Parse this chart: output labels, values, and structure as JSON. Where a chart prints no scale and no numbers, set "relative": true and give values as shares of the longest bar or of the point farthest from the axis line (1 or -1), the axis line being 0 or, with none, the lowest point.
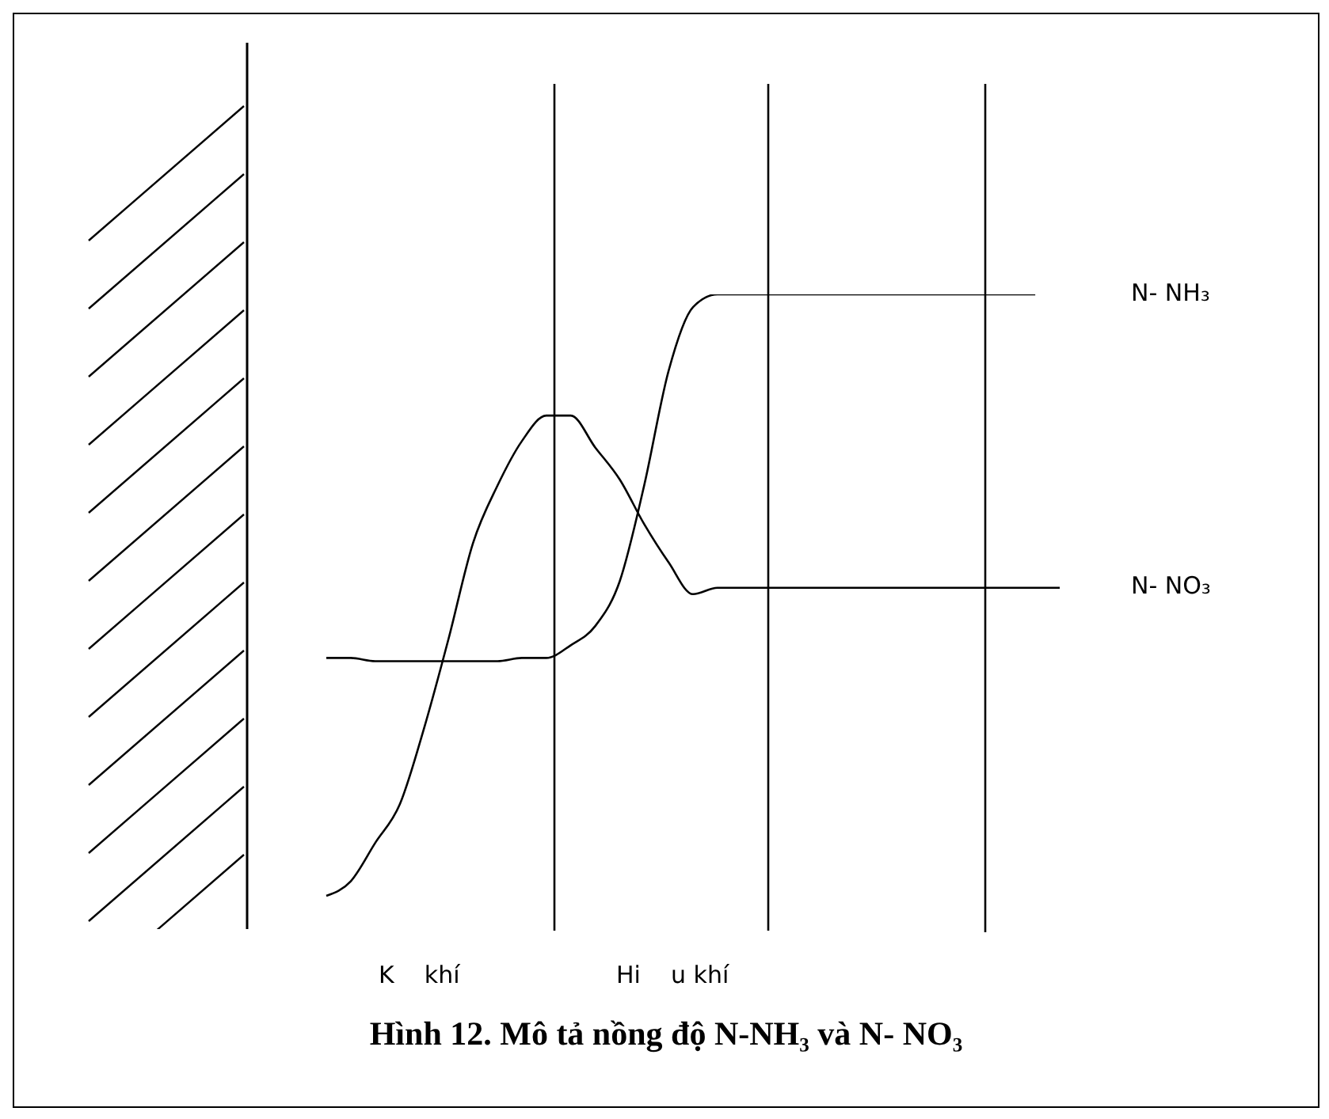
{
  "chart_data": {
    "type": "line",
    "relative": true,
    "title": "Hình 12.  Mô tả nồng độ N-NH₃ và N- NO₃",
    "categories": [
      null,
      null,
      null,
      null,
      null,
      null,
      null,
      null,
      null,
      null,
      null,
      null,
      null,
      null,
      null,
      null,
      null,
      null,
      null,
      null,
      null,
      null,
      null,
      null,
      null,
      null,
      null,
      null,
      null,
      null,
      null
    ],
    "series": [
      {
        "name": "N- NH₃",
        "color": "#000000",
        "values": [
          0.43,
          0.43,
          0.425,
          0.425,
          0.425,
          0.425,
          0.425,
          0.425,
          0.43,
          0.43,
          0.45,
          0.48,
          0.55,
          0.7,
          0.88,
          0.98,
          1,
          1,
          1,
          1,
          1,
          1,
          1,
          1,
          1,
          1,
          1,
          1,
          1,
          1,
          null
        ]
      },
      {
        "name": "N- NO₃",
        "color": "#000000",
        "values": [
          0.057,
          0.08,
          0.14,
          0.2,
          0.32,
          0.46,
          0.61,
          0.7,
          0.77,
          0.81,
          0.81,
          0.76,
          0.71,
          0.64,
          0.58,
          0.53,
          0.54,
          0.54,
          0.54,
          0.54,
          0.54,
          0.54,
          0.54,
          0.54,
          0.54,
          0.54,
          0.54,
          0.54,
          0.54,
          0.54,
          0.54
        ]
      }
    ],
    "annotations": [
      "K    khí",
      "Hi    u khí"
    ],
    "legend": false,
    "grid": false,
    "marker": "none",
    "line_style": "solid"
  }
}
